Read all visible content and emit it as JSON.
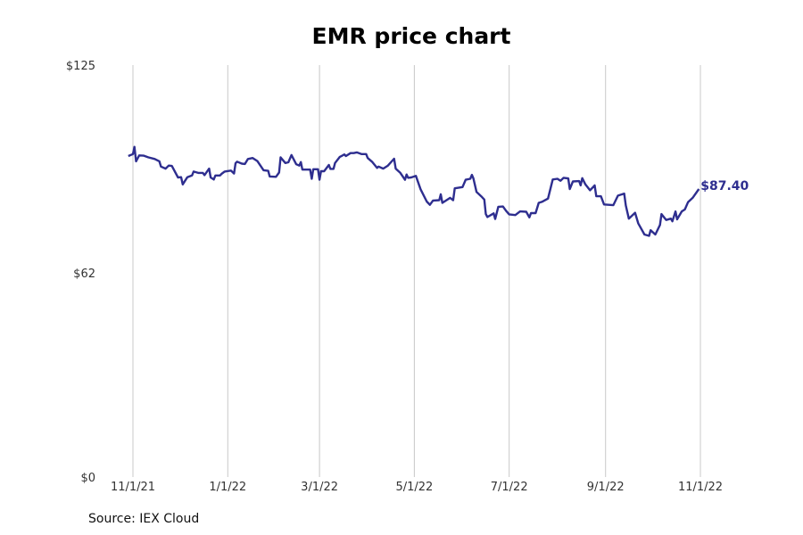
{
  "chart_data": {
    "type": "line",
    "title": "EMR price chart",
    "source": "Source: IEX Cloud",
    "ylim": [
      0,
      125
    ],
    "y_ticks": [
      {
        "value": 0,
        "label": "$0"
      },
      {
        "value": 62,
        "label": "$62"
      },
      {
        "value": 125,
        "label": "$125"
      }
    ],
    "xlim": [
      "2021-10-29",
      "2022-12-05"
    ],
    "x_ticks": [
      {
        "date": "2021-11-01",
        "label": "11/1/21"
      },
      {
        "date": "2022-01-01",
        "label": "1/1/22"
      },
      {
        "date": "2022-03-01",
        "label": "3/1/22"
      },
      {
        "date": "2022-05-01",
        "label": "5/1/22"
      },
      {
        "date": "2022-07-01",
        "label": "7/1/22"
      },
      {
        "date": "2022-09-01",
        "label": "9/1/22"
      },
      {
        "date": "2022-11-01",
        "label": "11/1/22"
      }
    ],
    "grid": "vertical",
    "color": "#2e2e8f",
    "last_value_label": "$87.40",
    "series": [
      {
        "points": [
          [
            "2021-10-29",
            97.4
          ],
          [
            "2021-11-01",
            98.0
          ],
          [
            "2021-11-02",
            100.2
          ],
          [
            "2021-11-03",
            95.8
          ],
          [
            "2021-11-05",
            97.6
          ],
          [
            "2021-11-08",
            97.5
          ],
          [
            "2021-11-11",
            97.0
          ],
          [
            "2021-11-15",
            96.5
          ],
          [
            "2021-11-18",
            95.8
          ],
          [
            "2021-11-19",
            94.2
          ],
          [
            "2021-11-22",
            93.6
          ],
          [
            "2021-11-24",
            94.5
          ],
          [
            "2021-11-26",
            94.4
          ],
          [
            "2021-11-30",
            90.9
          ],
          [
            "2021-12-02",
            91.0
          ],
          [
            "2021-12-03",
            88.8
          ],
          [
            "2021-12-06",
            91.0
          ],
          [
            "2021-12-09",
            91.5
          ],
          [
            "2021-12-10",
            92.7
          ],
          [
            "2021-12-13",
            92.3
          ],
          [
            "2021-12-16",
            92.3
          ],
          [
            "2021-12-17",
            91.6
          ],
          [
            "2021-12-20",
            93.6
          ],
          [
            "2021-12-21",
            90.9
          ],
          [
            "2021-12-23",
            90.3
          ],
          [
            "2021-12-24",
            91.5
          ],
          [
            "2021-12-27",
            91.5
          ],
          [
            "2021-12-28",
            92.0
          ],
          [
            "2021-12-30",
            92.7
          ],
          [
            "2022-01-03",
            93.0
          ],
          [
            "2022-01-05",
            92.1
          ],
          [
            "2022-01-06",
            95.2
          ],
          [
            "2022-01-07",
            95.7
          ],
          [
            "2022-01-10",
            95.1
          ],
          [
            "2022-01-12",
            95.0
          ],
          [
            "2022-01-14",
            96.5
          ],
          [
            "2022-01-17",
            96.8
          ],
          [
            "2022-01-20",
            95.9
          ],
          [
            "2022-01-24",
            93.1
          ],
          [
            "2022-01-27",
            92.9
          ],
          [
            "2022-01-28",
            91.2
          ],
          [
            "2022-02-01",
            91.1
          ],
          [
            "2022-02-03",
            92.4
          ],
          [
            "2022-02-04",
            97.0
          ],
          [
            "2022-02-07",
            95.3
          ],
          [
            "2022-02-09",
            95.5
          ],
          [
            "2022-02-11",
            97.7
          ],
          [
            "2022-02-14",
            94.9
          ],
          [
            "2022-02-16",
            94.5
          ],
          [
            "2022-02-17",
            95.6
          ],
          [
            "2022-02-18",
            93.3
          ],
          [
            "2022-02-23",
            93.3
          ],
          [
            "2022-02-24",
            90.5
          ],
          [
            "2022-02-25",
            93.4
          ],
          [
            "2022-02-28",
            93.4
          ],
          [
            "2022-03-01",
            90.2
          ],
          [
            "2022-03-02",
            92.8
          ],
          [
            "2022-03-04",
            92.8
          ],
          [
            "2022-03-07",
            94.7
          ],
          [
            "2022-03-08",
            93.5
          ],
          [
            "2022-03-10",
            93.5
          ],
          [
            "2022-03-11",
            95.3
          ],
          [
            "2022-03-14",
            97.1
          ],
          [
            "2022-03-17",
            97.9
          ],
          [
            "2022-03-18",
            97.4
          ],
          [
            "2022-03-21",
            98.3
          ],
          [
            "2022-03-23",
            98.3
          ],
          [
            "2022-03-25",
            98.5
          ],
          [
            "2022-03-28",
            98.0
          ],
          [
            "2022-03-31",
            98.0
          ],
          [
            "2022-04-01",
            96.8
          ],
          [
            "2022-04-04",
            95.6
          ],
          [
            "2022-04-07",
            93.8
          ],
          [
            "2022-04-08",
            94.2
          ],
          [
            "2022-04-11",
            93.6
          ],
          [
            "2022-04-14",
            94.5
          ],
          [
            "2022-04-18",
            96.6
          ],
          [
            "2022-04-19",
            93.6
          ],
          [
            "2022-04-22",
            92.3
          ],
          [
            "2022-04-25",
            90.2
          ],
          [
            "2022-04-26",
            91.8
          ],
          [
            "2022-04-27",
            90.8
          ],
          [
            "2022-04-29",
            90.9
          ],
          [
            "2022-05-02",
            91.4
          ],
          [
            "2022-05-05",
            87.3
          ],
          [
            "2022-05-09",
            83.6
          ],
          [
            "2022-05-11",
            82.6
          ],
          [
            "2022-05-13",
            83.9
          ],
          [
            "2022-05-17",
            84.0
          ],
          [
            "2022-05-18",
            85.8
          ],
          [
            "2022-05-19",
            83.2
          ],
          [
            "2022-05-24",
            84.7
          ],
          [
            "2022-05-26",
            84.0
          ],
          [
            "2022-05-27",
            87.6
          ],
          [
            "2022-06-01",
            88.0
          ],
          [
            "2022-06-03",
            90.2
          ],
          [
            "2022-06-06",
            90.5
          ],
          [
            "2022-06-07",
            91.7
          ],
          [
            "2022-06-08",
            90.6
          ],
          [
            "2022-06-10",
            86.5
          ],
          [
            "2022-06-13",
            85.2
          ],
          [
            "2022-06-15",
            84.2
          ],
          [
            "2022-06-16",
            79.8
          ],
          [
            "2022-06-17",
            78.9
          ],
          [
            "2022-06-21",
            80.0
          ],
          [
            "2022-06-22",
            78.3
          ],
          [
            "2022-06-24",
            82.0
          ],
          [
            "2022-06-27",
            82.1
          ],
          [
            "2022-06-29",
            80.8
          ],
          [
            "2022-07-01",
            79.7
          ],
          [
            "2022-07-05",
            79.5
          ],
          [
            "2022-07-08",
            80.6
          ],
          [
            "2022-07-12",
            80.5
          ],
          [
            "2022-07-14",
            78.8
          ],
          [
            "2022-07-15",
            80.1
          ],
          [
            "2022-07-18",
            80.1
          ],
          [
            "2022-07-20",
            83.2
          ],
          [
            "2022-07-22",
            83.5
          ],
          [
            "2022-07-26",
            84.5
          ],
          [
            "2022-07-29",
            90.3
          ],
          [
            "2022-08-01",
            90.5
          ],
          [
            "2022-08-03",
            89.9
          ],
          [
            "2022-08-05",
            90.8
          ],
          [
            "2022-08-08",
            90.6
          ],
          [
            "2022-08-09",
            87.4
          ],
          [
            "2022-08-11",
            89.7
          ],
          [
            "2022-08-15",
            89.8
          ],
          [
            "2022-08-16",
            88.5
          ],
          [
            "2022-08-17",
            90.7
          ],
          [
            "2022-08-19",
            88.8
          ],
          [
            "2022-08-22",
            87.0
          ],
          [
            "2022-08-25",
            88.5
          ],
          [
            "2022-08-26",
            85.2
          ],
          [
            "2022-08-29",
            85.2
          ],
          [
            "2022-08-31",
            82.7
          ],
          [
            "2022-09-06",
            82.5
          ],
          [
            "2022-09-09",
            85.4
          ],
          [
            "2022-09-13",
            86.0
          ],
          [
            "2022-09-14",
            82.4
          ],
          [
            "2022-09-16",
            78.4
          ],
          [
            "2022-09-20",
            80.2
          ],
          [
            "2022-09-22",
            77.0
          ],
          [
            "2022-09-26",
            73.6
          ],
          [
            "2022-09-29",
            73.2
          ],
          [
            "2022-09-30",
            74.9
          ],
          [
            "2022-10-03",
            73.6
          ],
          [
            "2022-10-06",
            76.5
          ],
          [
            "2022-10-07",
            79.8
          ],
          [
            "2022-10-10",
            78.0
          ],
          [
            "2022-10-13",
            78.4
          ],
          [
            "2022-10-14",
            77.6
          ],
          [
            "2022-10-16",
            80.6
          ],
          [
            "2022-10-17",
            78.2
          ],
          [
            "2022-10-20",
            80.6
          ],
          [
            "2022-10-22",
            81.2
          ],
          [
            "2022-10-24",
            83.4
          ],
          [
            "2022-10-27",
            84.7
          ],
          [
            "2022-10-31",
            87.4
          ]
        ]
      }
    ]
  }
}
